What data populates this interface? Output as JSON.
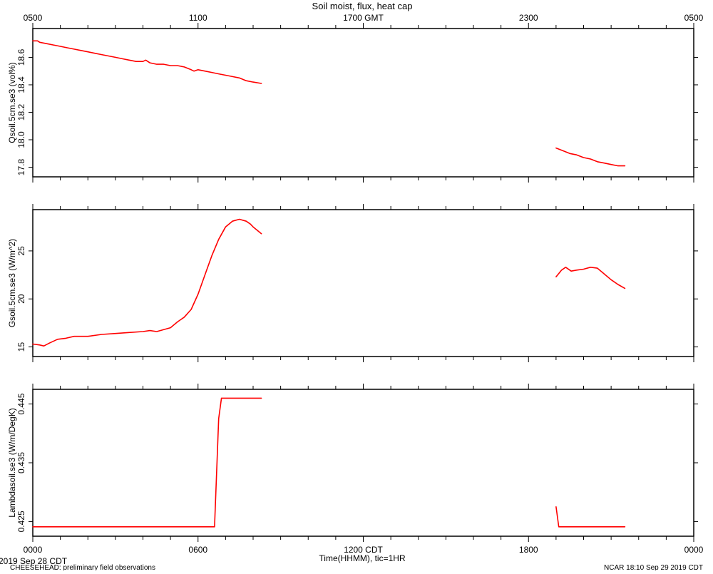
{
  "page": {
    "title": "Soil moist, flux, heat cap",
    "date_label": "2019 Sep 28 CDT",
    "footer_left": "CHEESEHEAD: preliminary field observations",
    "footer_right": "NCAR 18:10 Sep 29 2019 CDT",
    "series_color": "#ff0000"
  },
  "chart_data": [
    {
      "type": "line",
      "top_axis_ticks": [
        "0500",
        "1100",
        "1700 GMT",
        "2300",
        "0500"
      ],
      "ylabel": "Qsoil.5cm.se3 (vol%)",
      "ylim": [
        17.73,
        18.81
      ],
      "yticks": [
        "17.8",
        "18.0",
        "18.2",
        "18.4",
        "18.6"
      ],
      "xlim": [
        0,
        24
      ],
      "segments": [
        {
          "x": [
            0,
            0.17,
            0.25,
            0.5,
            0.75,
            1.0,
            1.25,
            1.5,
            1.75,
            2.0,
            2.25,
            2.5,
            2.75,
            3.0,
            3.25,
            3.5,
            3.75,
            4.0,
            4.1,
            4.25,
            4.5,
            4.75,
            5.0,
            5.25,
            5.5,
            5.75,
            5.85,
            6.0,
            6.25,
            6.5,
            6.75,
            7.0,
            7.25,
            7.5,
            7.75,
            8.0,
            8.3
          ],
          "y": [
            18.72,
            18.72,
            18.71,
            18.7,
            18.69,
            18.68,
            18.67,
            18.66,
            18.65,
            18.64,
            18.63,
            18.62,
            18.61,
            18.6,
            18.59,
            18.58,
            18.57,
            18.57,
            18.58,
            18.56,
            18.55,
            18.55,
            18.54,
            18.54,
            18.53,
            18.51,
            18.5,
            18.51,
            18.5,
            18.49,
            18.48,
            18.47,
            18.46,
            18.45,
            18.43,
            18.42,
            18.41
          ]
        },
        {
          "x": [
            19.0,
            19.25,
            19.5,
            19.75,
            20.0,
            20.25,
            20.5,
            20.75,
            21.0,
            21.25,
            21.5
          ],
          "y": [
            17.94,
            17.92,
            17.9,
            17.89,
            17.87,
            17.86,
            17.84,
            17.83,
            17.82,
            17.81,
            17.81
          ]
        }
      ]
    },
    {
      "type": "line",
      "ylabel": "Gsoil.5cm.se3 (W/m^2)",
      "ylim": [
        14.0,
        29.3
      ],
      "yticks": [
        "15",
        "20",
        "25"
      ],
      "xlim": [
        0,
        24
      ],
      "segments": [
        {
          "x": [
            0,
            0.25,
            0.4,
            0.6,
            0.9,
            1.2,
            1.5,
            2.0,
            2.5,
            3.0,
            3.5,
            4.0,
            4.25,
            4.5,
            5.0,
            5.25,
            5.5,
            5.75,
            6.0,
            6.25,
            6.5,
            6.75,
            7.0,
            7.25,
            7.5,
            7.75,
            7.9,
            8.0,
            8.3
          ],
          "y": [
            15.3,
            15.2,
            15.1,
            15.4,
            15.8,
            15.9,
            16.1,
            16.1,
            16.3,
            16.4,
            16.5,
            16.6,
            16.7,
            16.6,
            17.0,
            17.6,
            18.1,
            18.9,
            20.5,
            22.5,
            24.5,
            26.2,
            27.5,
            28.1,
            28.3,
            28.1,
            27.8,
            27.5,
            26.8
          ]
        },
        {
          "x": [
            19.0,
            19.2,
            19.35,
            19.55,
            19.75,
            20.0,
            20.25,
            20.5,
            20.75,
            21.0,
            21.25,
            21.5
          ],
          "y": [
            22.3,
            23.0,
            23.3,
            22.9,
            23.0,
            23.1,
            23.3,
            23.2,
            22.6,
            22.0,
            21.5,
            21.1
          ]
        }
      ]
    },
    {
      "type": "line",
      "ylabel": "Lambdasoil.se3 (W/m/DegK)",
      "ylim": [
        0.4225,
        0.4475
      ],
      "yticks": [
        "0.425",
        "0.435",
        "0.445"
      ],
      "xlim": [
        0,
        24
      ],
      "bottom_axis_ticks": [
        "0000",
        "0600",
        "1200 CDT",
        "1800",
        "0000"
      ],
      "xlabel": "Time(HHMM), tic=1HR",
      "segments": [
        {
          "x": [
            0,
            6.6,
            6.75,
            6.85,
            8.3
          ],
          "y": [
            0.4241,
            0.4241,
            0.4425,
            0.446,
            0.446
          ]
        },
        {
          "x": [
            19.0,
            19.1,
            21.5
          ],
          "y": [
            0.4275,
            0.4241,
            0.4241
          ]
        }
      ]
    }
  ]
}
